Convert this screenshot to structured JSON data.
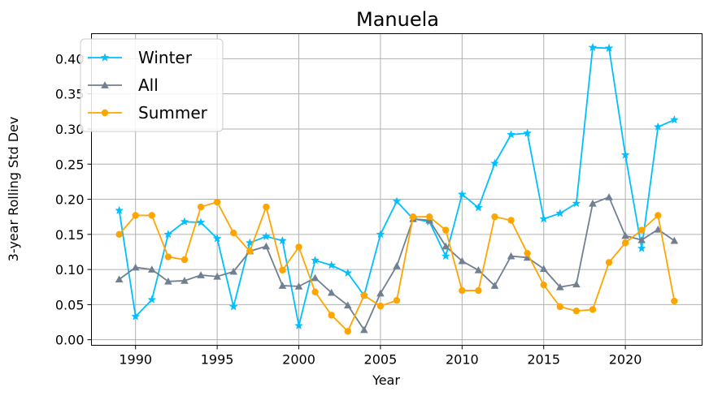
{
  "chart_data": {
    "type": "line",
    "title": "Manuela",
    "xlabel": "Year",
    "ylabel": "3-year Rolling Std Dev",
    "xlim": [
      1987.3,
      1984.7
    ],
    "ylim": [
      -0.0079,
      0.4357
    ],
    "xticks": [
      1990,
      1995,
      2000,
      2005,
      2010,
      2015,
      2020
    ],
    "yticks": [
      0.0,
      0.05,
      0.1,
      0.15,
      0.2,
      0.25,
      0.3,
      0.35,
      0.4
    ],
    "ytick_labels": [
      "0.00",
      "0.05",
      "0.10",
      "0.15",
      "0.20",
      "0.25",
      "0.30",
      "0.35",
      "0.40"
    ],
    "grid": true,
    "legend_position": "top-left",
    "x": [
      1989,
      1990,
      1991,
      1992,
      1993,
      1994,
      1995,
      1996,
      1997,
      1998,
      1999,
      2000,
      2001,
      2002,
      2003,
      2004,
      2005,
      2006,
      2007,
      2008,
      2009,
      2010,
      2011,
      2012,
      2013,
      2014,
      2015,
      2016,
      2017,
      2018,
      2019,
      2020,
      2021,
      2022,
      2023
    ],
    "series": [
      {
        "name": "Winter",
        "color": "#00bfff",
        "marker": "star",
        "values": [
          0.184,
          0.033,
          0.057,
          0.15,
          0.168,
          0.167,
          0.144,
          0.047,
          0.138,
          0.147,
          0.141,
          0.02,
          0.113,
          0.106,
          0.095,
          0.063,
          0.15,
          0.197,
          0.172,
          0.168,
          0.119,
          0.207,
          0.188,
          0.251,
          0.292,
          0.294,
          0.172,
          0.18,
          0.194,
          0.416,
          0.415,
          0.263,
          0.13,
          0.303,
          0.313
        ]
      },
      {
        "name": "All",
        "color": "#708090",
        "marker": "triangle",
        "values": [
          0.086,
          0.103,
          0.1,
          0.083,
          0.084,
          0.092,
          0.09,
          0.097,
          0.126,
          0.133,
          0.077,
          0.076,
          0.088,
          0.067,
          0.049,
          0.014,
          0.066,
          0.105,
          0.172,
          0.17,
          0.133,
          0.112,
          0.099,
          0.077,
          0.119,
          0.117,
          0.101,
          0.075,
          0.079,
          0.194,
          0.203,
          0.148,
          0.142,
          0.157,
          0.141
        ]
      },
      {
        "name": "Summer",
        "color": "#ffa500",
        "marker": "circle",
        "values": [
          0.15,
          0.177,
          0.177,
          0.118,
          0.114,
          0.189,
          0.196,
          0.152,
          0.126,
          0.189,
          0.099,
          0.132,
          0.068,
          0.035,
          0.012,
          0.063,
          0.048,
          0.056,
          0.175,
          0.175,
          0.156,
          0.07,
          0.07,
          0.175,
          0.17,
          0.123,
          0.078,
          0.047,
          0.041,
          0.043,
          0.11,
          0.138,
          0.156,
          0.177,
          0.055
        ]
      }
    ]
  }
}
